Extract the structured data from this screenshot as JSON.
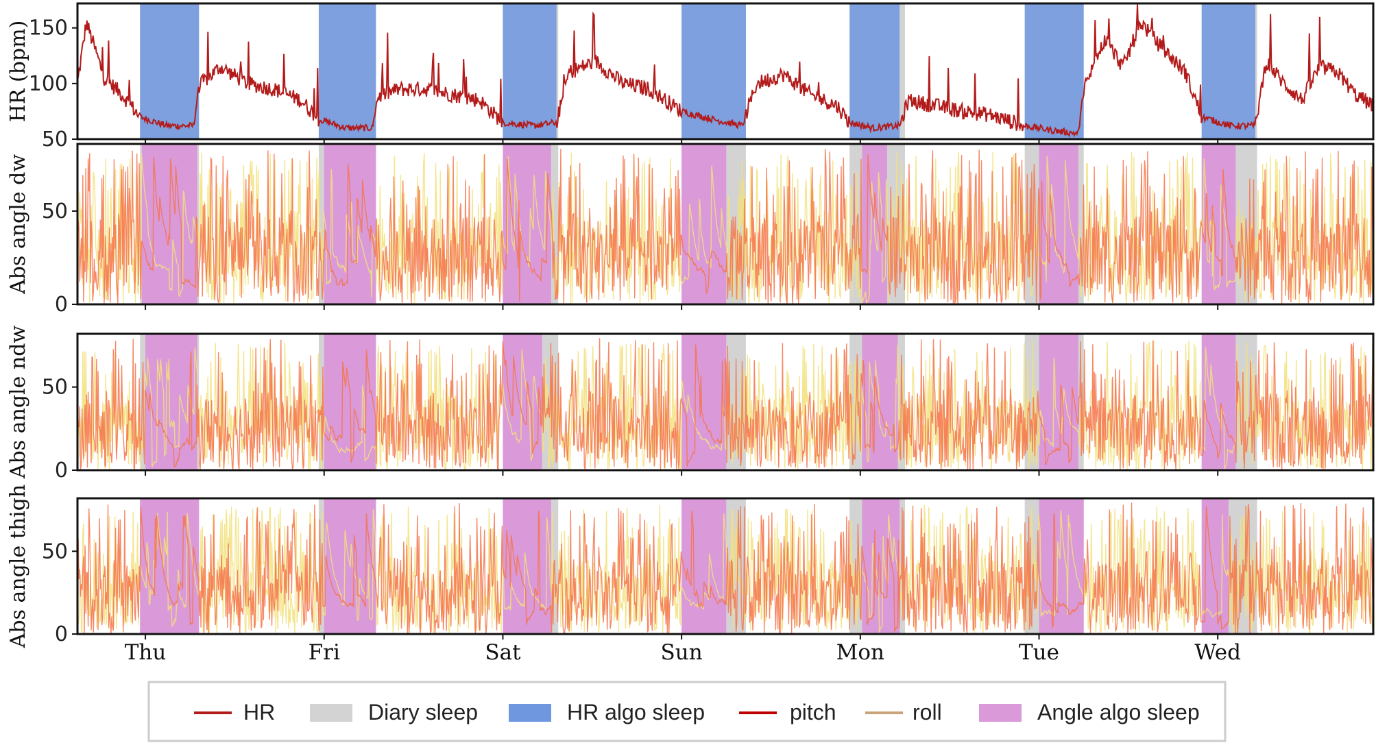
{
  "colors": {
    "hr": "#b31b1b",
    "diary_sleep": "#d3d3d3",
    "hr_algo_sleep": "#6f97df",
    "angle_algo_sleep": "#da9ad9",
    "pitch_line": "#c00000",
    "roll_line": "#c9a37a",
    "pitch_signal": "#f5734a",
    "roll_signal": "#f2e07a"
  },
  "legend": {
    "items": [
      {
        "label": "HR",
        "kind": "line",
        "color_key": "hr"
      },
      {
        "label": "Diary sleep",
        "kind": "patch",
        "color_key": "diary_sleep"
      },
      {
        "label": "HR algo sleep",
        "kind": "patch",
        "color_key": "hr_algo_sleep"
      },
      {
        "label": "pitch",
        "kind": "line",
        "color_key": "pitch_line"
      },
      {
        "label": "roll",
        "kind": "line",
        "color_key": "roll_line"
      },
      {
        "label": "Angle algo sleep",
        "kind": "patch",
        "color_key": "angle_algo_sleep"
      }
    ]
  },
  "chart_data": {
    "type": "line",
    "x_unit": "days",
    "x_range": [
      0,
      7.25
    ],
    "day_ticks": [
      {
        "label": "Thu",
        "x": 0.38
      },
      {
        "label": "Fri",
        "x": 1.38
      },
      {
        "label": "Sat",
        "x": 2.38
      },
      {
        "label": "Sun",
        "x": 3.38
      },
      {
        "label": "Mon",
        "x": 4.38
      },
      {
        "label": "Tue",
        "x": 5.38
      },
      {
        "label": "Wed",
        "x": 6.38
      }
    ],
    "diary_sleep": [
      [
        0.35,
        0.68
      ],
      [
        1.35,
        1.67
      ],
      [
        2.38,
        2.69
      ],
      [
        3.38,
        3.74
      ],
      [
        4.32,
        4.63
      ],
      [
        5.3,
        5.63
      ],
      [
        6.29,
        6.6
      ]
    ],
    "hr_algo_sleep": [
      [
        0.35,
        0.68
      ],
      [
        1.35,
        1.67
      ],
      [
        2.38,
        2.68
      ],
      [
        3.38,
        3.74
      ],
      [
        4.32,
        4.6
      ],
      [
        5.3,
        5.63
      ],
      [
        6.29,
        6.59
      ]
    ],
    "angle_algo_sleep_dw": [
      [
        0.36,
        0.67
      ],
      [
        1.38,
        1.67
      ],
      [
        2.38,
        2.65
      ],
      [
        3.38,
        3.63
      ],
      [
        4.39,
        4.53
      ],
      [
        5.38,
        5.6
      ],
      [
        6.29,
        6.48
      ]
    ],
    "angle_algo_sleep_ndw": [
      [
        0.38,
        0.67
      ],
      [
        1.38,
        1.67
      ],
      [
        2.38,
        2.6
      ],
      [
        3.38,
        3.63
      ],
      [
        4.39,
        4.59
      ],
      [
        5.38,
        5.6
      ],
      [
        6.29,
        6.48
      ]
    ],
    "angle_algo_sleep_thigh": [
      [
        0.35,
        0.68
      ],
      [
        1.38,
        1.67
      ],
      [
        2.38,
        2.65
      ],
      [
        3.38,
        3.63
      ],
      [
        4.39,
        4.6
      ],
      [
        5.38,
        5.63
      ],
      [
        6.29,
        6.44
      ]
    ],
    "panels": [
      {
        "ylabel": "HR (bpm)",
        "ylim": [
          50,
          172
        ],
        "yticks": [
          50,
          100,
          150
        ]
      },
      {
        "ylabel": "Abs angle dw",
        "ylim": [
          0,
          86
        ],
        "yticks": [
          0,
          50
        ]
      },
      {
        "ylabel": "Abs angle ndw",
        "ylim": [
          0,
          82
        ],
        "yticks": [
          0,
          50
        ]
      },
      {
        "ylabel": "Abs angle thigh",
        "ylim": [
          0,
          82
        ],
        "yticks": [
          0,
          50
        ]
      }
    ],
    "hr_series": {
      "name": "HR",
      "x": [
        0.0,
        0.05,
        0.15,
        0.25,
        0.35,
        0.5,
        0.65,
        0.68,
        0.8,
        0.95,
        1.1,
        1.25,
        1.35,
        1.5,
        1.65,
        1.68,
        1.8,
        1.95,
        2.1,
        2.25,
        2.38,
        2.55,
        2.68,
        2.75,
        2.9,
        3.05,
        3.2,
        3.38,
        3.55,
        3.72,
        3.8,
        3.95,
        4.1,
        4.25,
        4.32,
        4.45,
        4.6,
        4.65,
        4.8,
        4.95,
        5.1,
        5.3,
        5.45,
        5.6,
        5.63,
        5.75,
        5.85,
        5.95,
        6.05,
        6.2,
        6.29,
        6.45,
        6.59,
        6.65,
        6.75,
        6.85,
        6.95,
        7.05,
        7.15,
        7.25
      ],
      "values": [
        100,
        155,
        105,
        90,
        70,
        62,
        62,
        98,
        115,
        100,
        95,
        85,
        68,
        60,
        60,
        88,
        95,
        95,
        90,
        85,
        65,
        62,
        65,
        110,
        120,
        100,
        95,
        75,
        68,
        62,
        100,
        108,
        90,
        80,
        65,
        60,
        62,
        85,
        80,
        75,
        72,
        62,
        58,
        55,
        95,
        140,
        115,
        155,
        135,
        110,
        70,
        62,
        62,
        120,
        100,
        85,
        115,
        110,
        90,
        80
      ]
    },
    "pitch_series": {
      "name": "pitch"
    },
    "roll_series": {
      "name": "roll"
    }
  }
}
